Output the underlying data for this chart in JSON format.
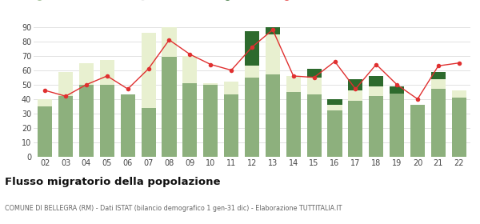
{
  "years": [
    "02",
    "03",
    "04",
    "05",
    "06",
    "07",
    "08",
    "09",
    "10",
    "11",
    "12",
    "13",
    "14",
    "15",
    "16",
    "17",
    "18",
    "19",
    "20",
    "21",
    "22"
  ],
  "iscritti_altri_comuni": [
    35,
    42,
    50,
    50,
    43,
    34,
    69,
    51,
    50,
    43,
    55,
    57,
    45,
    43,
    32,
    39,
    42,
    44,
    36,
    47,
    41
  ],
  "iscritti_estero": [
    40,
    59,
    65,
    67,
    43,
    86,
    90,
    70,
    51,
    52,
    63,
    85,
    56,
    55,
    36,
    46,
    49,
    44,
    36,
    54,
    46
  ],
  "iscritti_altri": [
    0,
    0,
    0,
    0,
    0,
    0,
    0,
    0,
    0,
    0,
    24,
    27,
    0,
    6,
    4,
    8,
    7,
    5,
    0,
    5,
    0
  ],
  "cancellati": [
    46,
    42,
    50,
    56,
    47,
    61,
    81,
    71,
    64,
    60,
    76,
    88,
    56,
    55,
    66,
    47,
    64,
    50,
    40,
    63,
    65
  ],
  "color_altri_comuni": "#8db07d",
  "color_estero": "#e8f0d0",
  "color_altri": "#2d6a2d",
  "color_cancellati": "#e03030",
  "title": "Flusso migratorio della popolazione",
  "subtitle": "COMUNE DI BELLEGRA (RM) - Dati ISTAT (bilancio demografico 1 gen-31 dic) - Elaborazione TUTTITALIA.IT",
  "ylim": [
    0,
    90
  ],
  "yticks": [
    0,
    10,
    20,
    30,
    40,
    50,
    60,
    70,
    80,
    90
  ],
  "background_color": "#ffffff",
  "grid_color": "#dddddd"
}
